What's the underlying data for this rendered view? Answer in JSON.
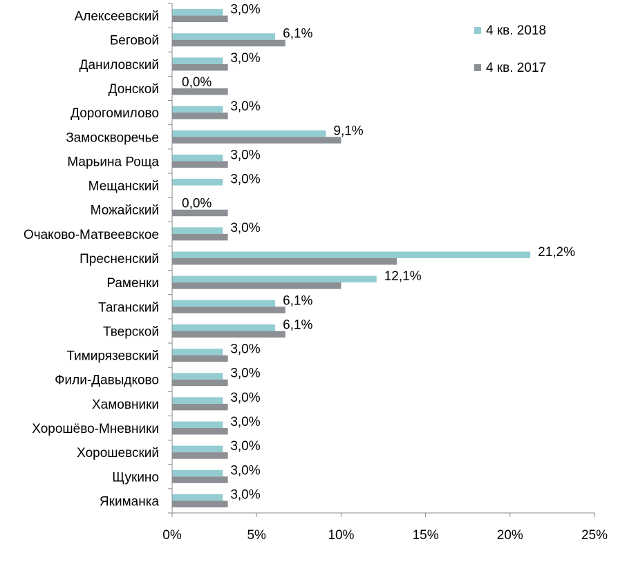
{
  "chart_data": {
    "type": "bar",
    "orientation": "horizontal",
    "categories": [
      "Алексеевский",
      "Беговой",
      "Даниловский",
      "Донской",
      "Дорогомилово",
      "Замоскворечье",
      "Марьина Роща",
      "Мещанский",
      "Можайский",
      "Очаково-Матвеевское",
      "Пресненский",
      "Раменки",
      "Таганский",
      "Тверской",
      "Тимирязевский",
      "Фили-Давыдково",
      "Хамовники",
      "Хорошёво-Мневники",
      "Хорошевский",
      "Щукино",
      "Якиманка"
    ],
    "series": [
      {
        "name": "4 кв. 2018",
        "color": "#93CDD1",
        "values": [
          3.0,
          6.1,
          3.0,
          0.0,
          3.0,
          9.1,
          3.0,
          3.0,
          0.0,
          3.0,
          21.2,
          12.1,
          6.1,
          6.1,
          3.0,
          3.0,
          3.0,
          3.0,
          3.0,
          3.0,
          3.0
        ],
        "labels": [
          "3,0%",
          "6,1%",
          "3,0%",
          "0,0%",
          "3,0%",
          "9,1%",
          "3,0%",
          "3,0%",
          "0,0%",
          "3,0%",
          "21,2%",
          "12,1%",
          "6,1%",
          "6,1%",
          "3,0%",
          "3,0%",
          "3,0%",
          "3,0%",
          "3,0%",
          "3,0%",
          "3,0%"
        ]
      },
      {
        "name": "4 кв. 2017",
        "color": "#8C8F94",
        "values": [
          3.3,
          6.7,
          3.3,
          3.3,
          3.3,
          10.0,
          3.3,
          0.0,
          3.3,
          3.3,
          13.3,
          10.0,
          6.7,
          6.7,
          3.3,
          3.3,
          3.3,
          3.3,
          3.3,
          3.3,
          3.3
        ]
      }
    ],
    "xlim": [
      0,
      25
    ],
    "xticks": [
      0,
      5,
      10,
      15,
      20,
      25
    ],
    "xtick_labels": [
      "0%",
      "5%",
      "10%",
      "15%",
      "20%",
      "25%"
    ],
    "grid": false,
    "legend_position": "top-right"
  }
}
